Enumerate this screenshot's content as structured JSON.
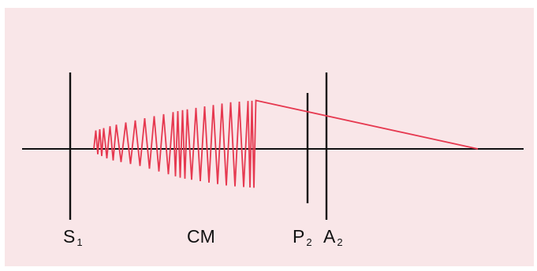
{
  "diagram": {
    "background_color": "#f9e6e8",
    "line_color": "#111111",
    "waveform_color": "#e63950",
    "labels": {
      "s1": {
        "main": "S",
        "sub": "1"
      },
      "cm": {
        "main": "CM"
      },
      "p2": {
        "main": "P",
        "sub": "2"
      },
      "a2": {
        "main": "A",
        "sub": "2"
      }
    }
  }
}
